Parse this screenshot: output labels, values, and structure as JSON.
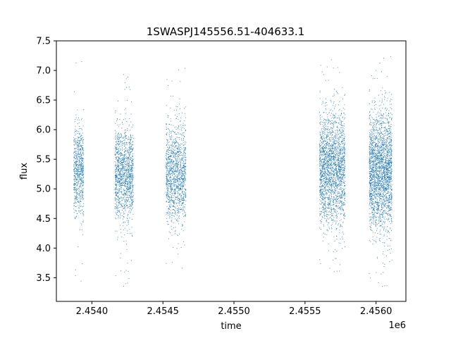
{
  "chart_data": {
    "type": "scatter",
    "title": "1SWASPJ145556.51-404633.1",
    "xlabel": "time",
    "ylabel": "flux",
    "x_offset_label": "1e6",
    "xlim": [
      2453750,
      2456210
    ],
    "ylim": [
      3.1,
      7.5
    ],
    "x_ticks": [
      2454000,
      2454500,
      2455000,
      2455500,
      2456000
    ],
    "x_tick_labels": [
      "2.4540",
      "2.4545",
      "2.4550",
      "2.4555",
      "2.4560"
    ],
    "y_ticks": [
      3.5,
      4.0,
      4.5,
      5.0,
      5.5,
      6.0,
      6.5,
      7.0,
      7.5
    ],
    "y_tick_labels": [
      "3.5",
      "4.0",
      "4.5",
      "5.0",
      "5.5",
      "6.0",
      "6.5",
      "7.0",
      "7.5"
    ],
    "grid": false,
    "legend": "none",
    "marker_color": "#1f77b4",
    "series": [
      {
        "clusters": [
          {
            "x_range": [
              2453870,
              2453940
            ],
            "y_median": 5.3,
            "y_core": [
              4.6,
              6.1
            ],
            "y_extremes": [
              3.4,
              7.25
            ],
            "points": 700
          },
          {
            "x_range": [
              2454160,
              2454290
            ],
            "y_median": 5.25,
            "y_core": [
              4.6,
              6.1
            ],
            "y_extremes": [
              3.35,
              7.05
            ],
            "points": 1300
          },
          {
            "x_range": [
              2454520,
              2454660
            ],
            "y_median": 5.25,
            "y_core": [
              4.5,
              6.1
            ],
            "y_extremes": [
              3.5,
              7.05
            ],
            "points": 1300
          },
          {
            "x_range": [
              2455600,
              2455780
            ],
            "y_median": 5.35,
            "y_core": [
              4.5,
              6.3
            ],
            "y_extremes": [
              3.55,
              7.3
            ],
            "points": 2200
          },
          {
            "x_range": [
              2455950,
              2456110
            ],
            "y_median": 5.3,
            "y_core": [
              4.4,
              6.3
            ],
            "y_extremes": [
              3.3,
              7.25
            ],
            "points": 2400
          }
        ]
      }
    ]
  }
}
